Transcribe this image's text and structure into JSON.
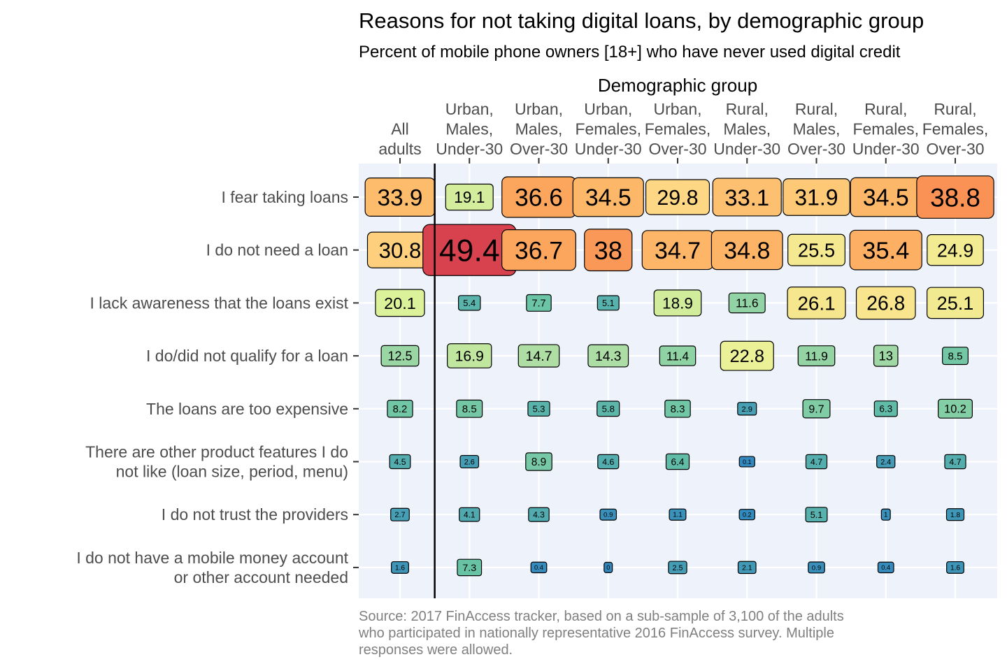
{
  "chart_data": {
    "type": "heatmap",
    "title": "Reasons for not taking digital loans, by demographic group",
    "subtitle": "Percent of mobile phone owners [18+] who have never used digital credit",
    "xlabel": "Demographic group",
    "columns": [
      {
        "id": "all",
        "label_lines": [
          "All",
          "adults"
        ]
      },
      {
        "id": "urban_males_under30",
        "label_lines": [
          "Urban,",
          "Males,",
          "Under-30"
        ]
      },
      {
        "id": "urban_males_over30",
        "label_lines": [
          "Urban,",
          "Males,",
          "Over-30"
        ]
      },
      {
        "id": "urban_females_under30",
        "label_lines": [
          "Urban,",
          "Females,",
          "Under-30"
        ]
      },
      {
        "id": "urban_females_over30",
        "label_lines": [
          "Urban,",
          "Females,",
          "Over-30"
        ]
      },
      {
        "id": "rural_males_under30",
        "label_lines": [
          "Rural,",
          "Males,",
          "Under-30"
        ]
      },
      {
        "id": "rural_males_over30",
        "label_lines": [
          "Rural,",
          "Males,",
          "Over-30"
        ]
      },
      {
        "id": "rural_females_under30",
        "label_lines": [
          "Rural,",
          "Females,",
          "Under-30"
        ]
      },
      {
        "id": "rural_females_over30",
        "label_lines": [
          "Rural,",
          "Females,",
          "Over-30"
        ]
      }
    ],
    "rows": [
      {
        "label_lines": [
          "I fear taking loans"
        ],
        "values": [
          33.9,
          19.1,
          36.6,
          34.5,
          29.8,
          33.1,
          31.9,
          34.5,
          38.8
        ]
      },
      {
        "label_lines": [
          "I do not need a loan"
        ],
        "values": [
          30.8,
          49.4,
          36.7,
          38,
          34.7,
          34.8,
          25.5,
          35.4,
          24.9
        ]
      },
      {
        "label_lines": [
          "I lack awareness that the loans exist"
        ],
        "values": [
          20.1,
          5.4,
          7.7,
          5.1,
          18.9,
          11.6,
          26.1,
          26.8,
          25.1
        ]
      },
      {
        "label_lines": [
          "I do/did not qualify for a loan"
        ],
        "values": [
          12.5,
          16.9,
          14.7,
          14.3,
          11.4,
          22.8,
          11.9,
          13,
          8.5
        ]
      },
      {
        "label_lines": [
          "The loans are too expensive"
        ],
        "values": [
          8.2,
          8.5,
          5.3,
          5.8,
          8.3,
          2.9,
          9.7,
          6.3,
          10.2
        ]
      },
      {
        "label_lines": [
          "There are other product features I do",
          "not like (loan size, period, menu)"
        ],
        "values": [
          4.5,
          2.6,
          8.9,
          4.6,
          6.4,
          0.1,
          4.7,
          2.4,
          4.7
        ]
      },
      {
        "label_lines": [
          "I do not trust the providers"
        ],
        "values": [
          2.7,
          4.1,
          4.3,
          0.9,
          1.1,
          0.2,
          5.1,
          1,
          1.8
        ]
      },
      {
        "label_lines": [
          "I do not have a mobile money account",
          "or other account needed"
        ],
        "values": [
          1.6,
          7.3,
          0.4,
          0,
          2.5,
          2.1,
          0.9,
          0.4,
          1.6
        ]
      }
    ],
    "value_range": [
      0,
      50
    ],
    "color_scale": [
      "#3288bd",
      "#66c2a5",
      "#abdda4",
      "#e6f598",
      "#fee08b",
      "#fdae61",
      "#f46d43",
      "#d53e4f"
    ],
    "panel_background": "#eef3fb",
    "grid": true,
    "divider_after_column": 0,
    "caption_lines": [
      "Source: 2017 FinAccess tracker, based on a sub-sample of 3,100 of the adults",
      "who participated in nationally representative 2016 FinAccess survey. Multiple",
      "responses were allowed."
    ]
  }
}
